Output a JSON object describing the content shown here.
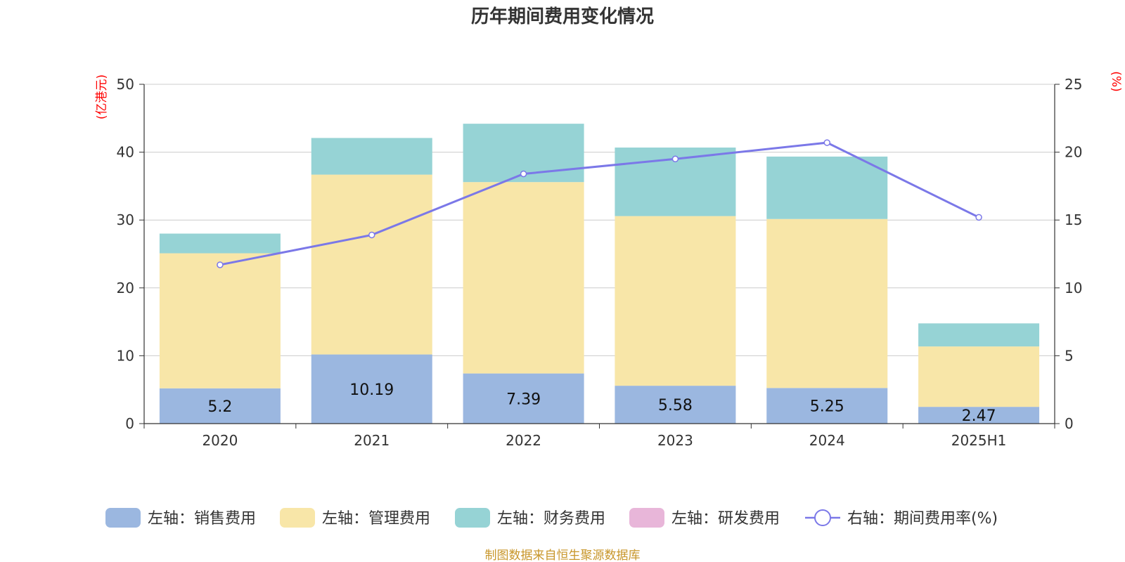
{
  "chart_data": {
    "type": "bar",
    "title": "历年期间费用变化情况",
    "categories": [
      "2020",
      "2021",
      "2022",
      "2023",
      "2024",
      "2025H1"
    ],
    "left_axis": {
      "unit": "(亿港元)",
      "min": 0,
      "max": 50,
      "ticks": [
        0,
        10,
        20,
        30,
        40,
        50
      ]
    },
    "right_axis": {
      "unit": "(%)",
      "min": 0,
      "max": 25,
      "ticks": [
        0,
        5,
        10,
        15,
        20,
        25
      ]
    },
    "stacked": true,
    "series": [
      {
        "name": "左轴：销售费用",
        "color": "#9bb7e0",
        "values": [
          5.2,
          10.19,
          7.39,
          5.58,
          5.25,
          2.47
        ],
        "show_labels": true
      },
      {
        "name": "左轴：管理费用",
        "color": "#f8e6a8",
        "values": [
          19.9,
          26.5,
          28.2,
          25.0,
          24.9,
          8.9
        ],
        "show_labels": false
      },
      {
        "name": "左轴：财务费用",
        "color": "#96d3d5",
        "values": [
          2.9,
          5.4,
          8.6,
          10.1,
          9.2,
          3.4
        ],
        "show_labels": false
      },
      {
        "name": "左轴：研发费用",
        "color": "#e8b6d9",
        "values": [
          0,
          0,
          0,
          0,
          0,
          0
        ],
        "show_labels": false
      }
    ],
    "line_series": {
      "name": "右轴：期间费用率(%)",
      "color": "#7b78e8",
      "axis": "right",
      "values": [
        11.7,
        13.9,
        18.4,
        19.5,
        20.7,
        15.2
      ]
    },
    "grid": true,
    "legend_position": "bottom"
  },
  "footer": {
    "source": "制图数据来自恒生聚源数据库"
  }
}
